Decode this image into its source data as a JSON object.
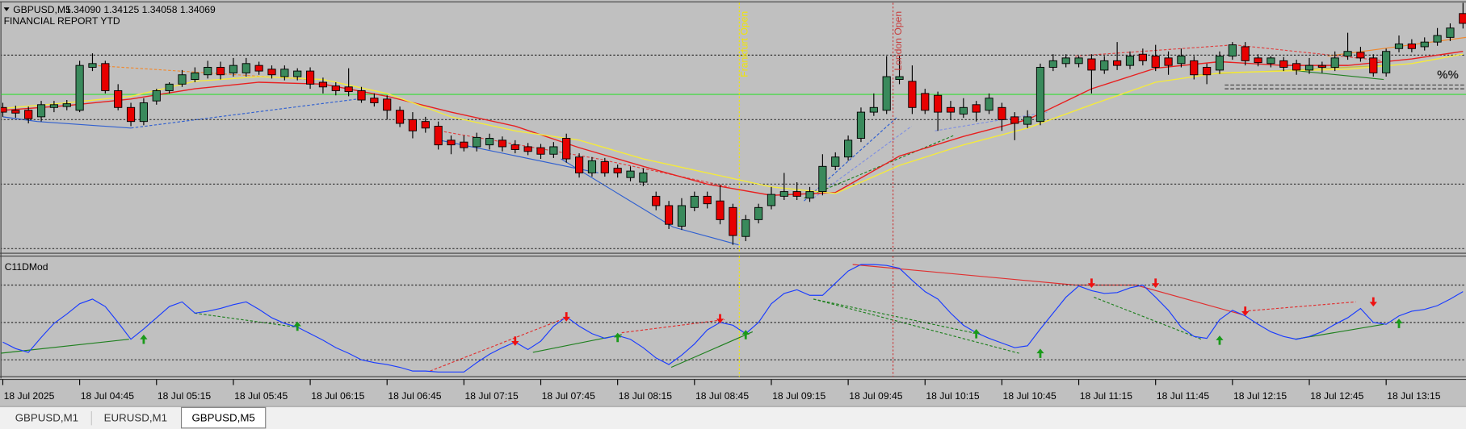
{
  "header": {
    "symbol": "GBPUSD,M5",
    "quote": "1.34090 1.34125 1.34058 1.34069",
    "report": "FINANCIAL REPORT YTD",
    "marker": "%%"
  },
  "tabs": [
    "GBPUSD,M1",
    "EURUSD,M1",
    "GBPUSD,M5"
  ],
  "chart_data": [
    {
      "type": "candlestick",
      "ylim": [
        1.33579,
        1.34113
      ],
      "up_color": "#3a8a5c",
      "down_color": "#e80000",
      "grid_levels": [
        1.34001,
        1.33863,
        1.33725,
        1.33587
      ],
      "hline": {
        "value": 1.33917,
        "color": "#33dd33"
      },
      "events": [
        {
          "label": "Frankfurt Open",
          "index": 57.5,
          "color": "#f2e600"
        },
        {
          "label": "London Open",
          "index": 69.5,
          "color": "#c83c3c"
        }
      ],
      "categories": [
        "18 Jul 2025",
        null,
        null,
        null,
        null,
        null,
        "18 Jul 04:45",
        null,
        null,
        null,
        null,
        null,
        "18 Jul 05:15",
        null,
        null,
        null,
        null,
        null,
        "18 Jul 05:45",
        null,
        null,
        null,
        null,
        null,
        "18 Jul 06:15",
        null,
        null,
        null,
        null,
        null,
        "18 Jul 06:45",
        null,
        null,
        null,
        null,
        null,
        "18 Jul 07:15",
        null,
        null,
        null,
        null,
        null,
        "18 Jul 07:45",
        null,
        null,
        null,
        null,
        null,
        "18 Jul 08:15",
        null,
        null,
        null,
        null,
        null,
        "18 Jul 08:45",
        null,
        null,
        null,
        null,
        null,
        "18 Jul 09:15",
        null,
        null,
        null,
        null,
        null,
        "18 Jul 09:45",
        null,
        null,
        null,
        null,
        null,
        "18 Jul 10:15",
        null,
        null,
        null,
        null,
        null,
        "18 Jul 10:45",
        null,
        null,
        null,
        null,
        null,
        "18 Jul 11:15",
        null,
        null,
        null,
        null,
        null,
        "18 Jul 11:45",
        null,
        null,
        null,
        null,
        null,
        "18 Jul 12:15",
        null,
        null,
        null,
        null,
        null,
        "18 Jul 12:45",
        null,
        null,
        null,
        null,
        null,
        "18 Jul 13:15",
        null,
        null,
        null,
        null,
        null,
        null
      ],
      "ohlc": [
        [
          1.33889,
          1.33899,
          1.33869,
          1.33879
        ],
        [
          1.33883,
          1.33893,
          1.33867,
          1.33877
        ],
        [
          1.33883,
          1.33891,
          1.33855,
          1.33865
        ],
        [
          1.33869,
          1.33903,
          1.33859,
          1.33895
        ],
        [
          1.33889,
          1.33903,
          1.33879,
          1.33895
        ],
        [
          1.33891,
          1.33905,
          1.33883,
          1.33897
        ],
        [
          1.33883,
          1.33989,
          1.33879,
          1.33979
        ],
        [
          1.33975,
          1.34005,
          1.33967,
          1.33983
        ],
        [
          1.33983,
          1.33989,
          1.33919,
          1.33925
        ],
        [
          1.33925,
          1.33939,
          1.33883,
          1.33889
        ],
        [
          1.33889,
          1.33899,
          1.33849,
          1.33859
        ],
        [
          1.33859,
          1.33909,
          1.33851,
          1.33899
        ],
        [
          1.33903,
          1.33929,
          1.33895,
          1.33925
        ],
        [
          1.33925,
          1.33943,
          1.33919,
          1.33939
        ],
        [
          1.33939,
          1.33969,
          1.33933,
          1.33959
        ],
        [
          1.33949,
          1.33975,
          1.33943,
          1.33963
        ],
        [
          1.33959,
          1.33989,
          1.33951,
          1.33975
        ],
        [
          1.33975,
          1.33987,
          1.33949,
          1.33959
        ],
        [
          1.33963,
          1.33995,
          1.33955,
          1.33979
        ],
        [
          1.33963,
          1.33995,
          1.33955,
          1.33983
        ],
        [
          1.33979,
          1.33987,
          1.33959,
          1.33967
        ],
        [
          1.33971,
          1.33979,
          1.33951,
          1.33959
        ],
        [
          1.33955,
          1.33979,
          1.33947,
          1.33971
        ],
        [
          1.33955,
          1.33973,
          1.33947,
          1.33967
        ],
        [
          1.33967,
          1.33975,
          1.33929,
          1.33939
        ],
        [
          1.33943,
          1.33953,
          1.33919,
          1.33933
        ],
        [
          1.33935,
          1.33943,
          1.33915,
          1.33925
        ],
        [
          1.33933,
          1.33973,
          1.33913,
          1.33923
        ],
        [
          1.33925,
          1.33933,
          1.33899,
          1.33905
        ],
        [
          1.33909,
          1.33919,
          1.33891,
          1.33899
        ],
        [
          1.33907,
          1.33915,
          1.33863,
          1.33883
        ],
        [
          1.33883,
          1.33891,
          1.33847,
          1.33855
        ],
        [
          1.33863,
          1.33879,
          1.33823,
          1.33839
        ],
        [
          1.33859,
          1.33869,
          1.33835,
          1.33845
        ],
        [
          1.33849,
          1.33859,
          1.33799,
          1.33809
        ],
        [
          1.33819,
          1.33829,
          1.33789,
          1.33809
        ],
        [
          1.33815,
          1.33829,
          1.33795,
          1.33803
        ],
        [
          1.33805,
          1.33835,
          1.33795,
          1.33825
        ],
        [
          1.33809,
          1.33833,
          1.33799,
          1.33823
        ],
        [
          1.33819,
          1.33827,
          1.33795,
          1.33805
        ],
        [
          1.33809,
          1.33819,
          1.33791,
          1.33799
        ],
        [
          1.33805,
          1.33813,
          1.33787,
          1.33795
        ],
        [
          1.33803,
          1.33811,
          1.33779,
          1.33789
        ],
        [
          1.33789,
          1.33815,
          1.33781,
          1.33805
        ],
        [
          1.33823,
          1.33833,
          1.33771,
          1.33779
        ],
        [
          1.33783,
          1.33791,
          1.33739,
          1.33749
        ],
        [
          1.33749,
          1.33783,
          1.33741,
          1.33775
        ],
        [
          1.33773,
          1.33781,
          1.33741,
          1.33749
        ],
        [
          1.33759,
          1.33767,
          1.33739,
          1.33749
        ],
        [
          1.33739,
          1.33763,
          1.33731,
          1.33753
        ],
        [
          1.33729,
          1.33759,
          1.33721,
          1.33749
        ],
        [
          1.33699,
          1.33709,
          1.33669,
          1.33679
        ],
        [
          1.33679,
          1.33689,
          1.33629,
          1.33639
        ],
        [
          1.33635,
          1.33695,
          1.33627,
          1.33679
        ],
        [
          1.33675,
          1.33709,
          1.33667,
          1.33699
        ],
        [
          1.33699,
          1.33709,
          1.33673,
          1.33683
        ],
        [
          1.33689,
          1.33723,
          1.33639,
          1.33649
        ],
        [
          1.33675,
          1.33683,
          1.33595,
          1.33615
        ],
        [
          1.33613,
          1.33659,
          1.33603,
          1.33649
        ],
        [
          1.33649,
          1.33683,
          1.33641,
          1.33675
        ],
        [
          1.33679,
          1.33719,
          1.33671,
          1.33703
        ],
        [
          1.33699,
          1.33749,
          1.33691,
          1.33709
        ],
        [
          1.33709,
          1.33729,
          1.33691,
          1.33699
        ],
        [
          1.33695,
          1.33719,
          1.33687,
          1.33709
        ],
        [
          1.33709,
          1.33789,
          1.33701,
          1.33763
        ],
        [
          1.33763,
          1.33793,
          1.33755,
          1.33783
        ],
        [
          1.33783,
          1.33829,
          1.33775,
          1.33819
        ],
        [
          1.33823,
          1.33889,
          1.33815,
          1.33879
        ],
        [
          1.33879,
          1.33919,
          1.33871,
          1.33889
        ],
        [
          1.33883,
          1.33999,
          1.33875,
          1.33955
        ],
        [
          1.33949,
          1.33999,
          1.33939,
          1.33955
        ],
        [
          1.33945,
          1.33979,
          1.33875,
          1.33889
        ],
        [
          1.33919,
          1.33929,
          1.33875,
          1.33883
        ],
        [
          1.33915,
          1.33923,
          1.33839,
          1.33879
        ],
        [
          1.33889,
          1.33903,
          1.33863,
          1.33879
        ],
        [
          1.33875,
          1.33909,
          1.33867,
          1.33889
        ],
        [
          1.33895,
          1.33903,
          1.33859,
          1.33879
        ],
        [
          1.33883,
          1.33919,
          1.33875,
          1.33909
        ],
        [
          1.33889,
          1.33899,
          1.33839,
          1.33863
        ],
        [
          1.33869,
          1.33879,
          1.33819,
          1.33855
        ],
        [
          1.33853,
          1.33883,
          1.33845,
          1.33869
        ],
        [
          1.33859,
          1.33983,
          1.33851,
          1.33975
        ],
        [
          1.33975,
          1.34003,
          1.33967,
          1.33989
        ],
        [
          1.33983,
          1.34003,
          1.33975,
          1.33995
        ],
        [
          1.33983,
          1.33999,
          1.33975,
          1.33995
        ],
        [
          1.33993,
          1.34003,
          1.33919,
          1.33969
        ],
        [
          1.33969,
          1.33999,
          1.33961,
          1.33989
        ],
        [
          1.33989,
          1.34029,
          1.33969,
          1.33979
        ],
        [
          1.33979,
          1.34009,
          1.33971,
          1.33999
        ],
        [
          1.34003,
          1.34015,
          1.33979,
          1.33989
        ],
        [
          1.33999,
          1.34023,
          1.33967,
          1.33975
        ],
        [
          1.33995,
          1.34009,
          1.33959,
          1.33979
        ],
        [
          1.33983,
          1.34015,
          1.33975,
          1.33999
        ],
        [
          1.33989,
          1.33999,
          1.33949,
          1.33959
        ],
        [
          1.33975,
          1.33983,
          1.33939,
          1.33959
        ],
        [
          1.33969,
          1.34009,
          1.33961,
          1.33999
        ],
        [
          1.33999,
          1.34029,
          1.33991,
          1.34023
        ],
        [
          1.34019,
          1.34029,
          1.33979,
          1.33989
        ],
        [
          1.33995,
          1.34003,
          1.33977,
          1.33985
        ],
        [
          1.33983,
          1.33999,
          1.33975,
          1.33995
        ],
        [
          1.33989,
          1.33997,
          1.33967,
          1.33975
        ],
        [
          1.33983,
          1.33991,
          1.33959,
          1.33969
        ],
        [
          1.33969,
          1.33995,
          1.33961,
          1.33979
        ],
        [
          1.33979,
          1.33987,
          1.33963,
          1.33975
        ],
        [
          1.33975,
          1.34009,
          1.33967,
          1.33995
        ],
        [
          1.33999,
          1.34049,
          1.33991,
          1.34009
        ],
        [
          1.34007,
          1.34019,
          1.33987,
          1.33995
        ],
        [
          1.33995,
          1.34003,
          1.33955,
          1.33963
        ],
        [
          1.33963,
          1.34015,
          1.33955,
          1.34009
        ],
        [
          1.34015,
          1.34043,
          1.34007,
          1.34025
        ],
        [
          1.34025,
          1.34035,
          1.34007,
          1.34015
        ],
        [
          1.34019,
          1.34039,
          1.34011,
          1.34029
        ],
        [
          1.34029,
          1.34059,
          1.34021,
          1.34043
        ],
        [
          1.34039,
          1.34069,
          1.34031,
          1.34059
        ],
        [
          1.3409,
          1.34125,
          1.34058,
          1.34069
        ]
      ],
      "lines": [
        {
          "color": "#e82020",
          "x": [
            0,
            5,
            10,
            15,
            20,
            25,
            30,
            35,
            40,
            45,
            50,
            55,
            60,
            65,
            70,
            75,
            80,
            85,
            90,
            95,
            100,
            105,
            110,
            114
          ],
          "values": [
            1.33883,
            1.33893,
            1.33907,
            1.33929,
            1.33943,
            1.33939,
            1.33913,
            1.33879,
            1.33849,
            1.33803,
            1.33763,
            1.33725,
            1.33701,
            1.33707,
            1.33785,
            1.33827,
            1.33863,
            1.33929,
            1.33973,
            1.33987,
            1.33979,
            1.33979,
            1.33993,
            1.34009
          ]
        },
        {
          "color": "#f4ea3c",
          "x": [
            0,
            5,
            10,
            15,
            20,
            25,
            30,
            35,
            40,
            45,
            50,
            55,
            60,
            65,
            70,
            75,
            80,
            85,
            90,
            95,
            100,
            105,
            110,
            114
          ],
          "values": [
            1.33887,
            1.33899,
            1.33913,
            1.33945,
            1.33955,
            1.33949,
            1.33919,
            1.33869,
            1.33839,
            1.33819,
            1.33779,
            1.33749,
            1.33719,
            1.33705,
            1.33765,
            1.33809,
            1.33845,
            1.33895,
            1.33943,
            1.33963,
            1.33967,
            1.33971,
            1.33983,
            1.34003
          ]
        }
      ]
    },
    {
      "type": "line",
      "title": "C11DMod",
      "color": "#1a3cff",
      "ylim": [
        0,
        129
      ],
      "levels": [
        98,
        58,
        18
      ],
      "values": [
        37,
        30,
        26,
        42,
        57,
        67,
        78,
        83,
        75,
        58,
        40,
        51,
        63,
        75,
        80,
        68,
        70,
        73,
        77,
        80,
        72,
        63,
        57,
        53,
        46,
        39,
        31,
        25,
        18,
        15,
        13,
        10,
        6,
        6,
        5,
        5,
        5,
        15,
        24,
        31,
        37,
        29,
        38,
        54,
        64,
        54,
        46,
        41,
        44,
        40,
        31,
        20,
        13,
        23,
        35,
        50,
        58,
        55,
        46,
        58,
        78,
        89,
        93,
        87,
        87,
        100,
        113,
        120,
        120,
        119,
        116,
        103,
        91,
        83,
        68,
        55,
        47,
        41,
        36,
        31,
        33,
        51,
        68,
        85,
        97,
        92,
        89,
        90,
        95,
        98,
        85,
        71,
        53,
        43,
        41,
        61,
        71,
        65,
        56,
        48,
        43,
        40,
        43,
        48,
        56,
        63,
        73,
        58,
        56,
        65,
        70,
        72,
        76,
        83,
        91
      ],
      "signals": [
        {
          "index": 11,
          "value": 40,
          "dir": "up"
        },
        {
          "index": 23,
          "value": 54,
          "dir": "up"
        },
        {
          "index": 48,
          "value": 42,
          "dir": "up"
        },
        {
          "index": 58,
          "value": 45,
          "dir": "up"
        },
        {
          "index": 76,
          "value": 46,
          "dir": "up"
        },
        {
          "index": 81,
          "value": 25,
          "dir": "up"
        },
        {
          "index": 95,
          "value": 39,
          "dir": "up"
        },
        {
          "index": 109,
          "value": 57,
          "dir": "up"
        },
        {
          "index": 40,
          "value": 38,
          "dir": "down"
        },
        {
          "index": 44,
          "value": 64,
          "dir": "down"
        },
        {
          "index": 56,
          "value": 62,
          "dir": "down"
        },
        {
          "index": 85,
          "value": 100,
          "dir": "down"
        },
        {
          "index": 90,
          "value": 100,
          "dir": "down"
        },
        {
          "index": 97,
          "value": 70,
          "dir": "down"
        },
        {
          "index": 107,
          "value": 80,
          "dir": "down"
        }
      ]
    }
  ]
}
